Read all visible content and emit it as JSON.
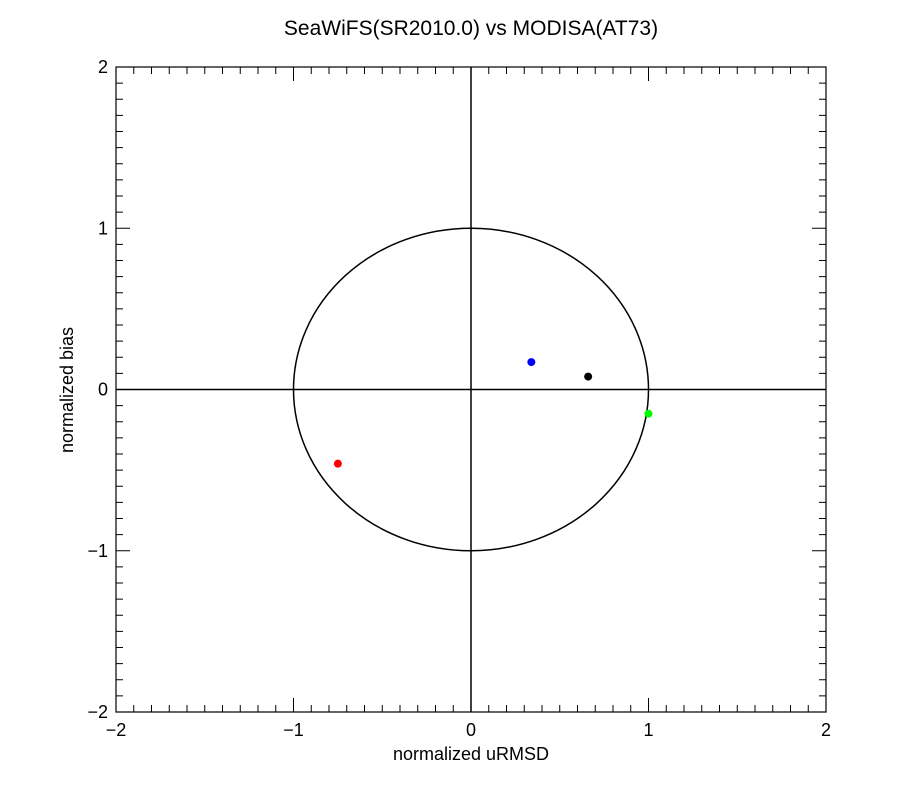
{
  "chart_data": {
    "type": "scatter",
    "title": "SeaWiFS(SR2010.0) vs MODISA(AT73)",
    "xlabel": "normalized uRMSD",
    "ylabel": "normalized bias",
    "xlim": [
      -2,
      2
    ],
    "ylim": [
      -2,
      2
    ],
    "xticks": [
      "−2",
      "−1",
      "0",
      "1",
      "2"
    ],
    "yticks": [
      "−2",
      "−1",
      "0",
      "1",
      "2"
    ],
    "xtick_values": [
      -2,
      -1,
      0,
      1,
      2
    ],
    "ytick_values": [
      -2,
      -1,
      0,
      1,
      2
    ],
    "minor_per_major": 10,
    "reference_circle_radius": 1,
    "zero_axes": true,
    "grid": false,
    "legend": "none",
    "points": [
      {
        "x": 0.34,
        "y": 0.17,
        "color": "#0000ff"
      },
      {
        "x": 0.66,
        "y": 0.08,
        "color": "#000000"
      },
      {
        "x": 1.0,
        "y": -0.15,
        "color": "#00ff00"
      },
      {
        "x": -0.75,
        "y": -0.46,
        "color": "#ff0000"
      }
    ]
  }
}
